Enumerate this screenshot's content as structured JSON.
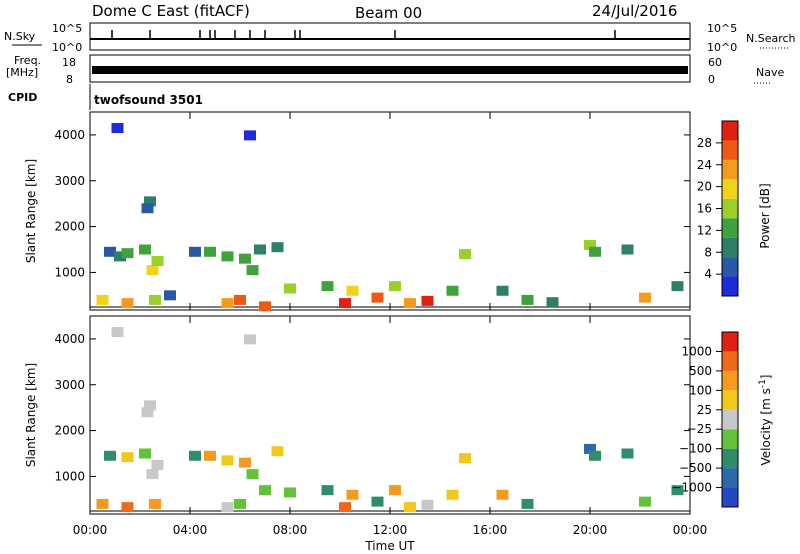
{
  "header": {
    "radar": "Dome C East (fitACF)",
    "beam": "Beam 00",
    "date": "24/Jul/2016"
  },
  "panels": {
    "nsky_label": "N.Sky",
    "nsky_ticks": [
      "10^5",
      "10^0"
    ],
    "nsearch_label": "N.Search",
    "nsearch_ticks": [
      "10^5",
      "10^0"
    ],
    "freq_label_1": "Freq.",
    "freq_label_2": "[MHz]",
    "freq_ticks": [
      "18",
      "8"
    ],
    "nave_label": "Nave",
    "nave_ticks": [
      "60",
      "0"
    ],
    "cpid_label": "CPID",
    "cpid_value": "twofsound 3501"
  },
  "x_axis": {
    "title": "Time UT",
    "ticks": [
      "00:00",
      "04:00",
      "08:00",
      "12:00",
      "16:00",
      "20:00",
      "00:00"
    ]
  },
  "chart_data": [
    {
      "type": "heatmap",
      "title": "",
      "xlabel": "Time UT",
      "ylabel": "Slant Range [km]",
      "xlim": [
        0,
        24
      ],
      "ylim": [
        180,
        4500
      ],
      "y_ticks": [
        "1000",
        "2000",
        "3000",
        "4000"
      ],
      "colorbar": {
        "label": "Power [dB]",
        "range": [
          0,
          32
        ],
        "ticks": [
          "4",
          "8",
          "12",
          "16",
          "20",
          "24",
          "28"
        ],
        "colors": [
          "#1f2bd9",
          "#2858a8",
          "#2e7f69",
          "#3fa23c",
          "#9bcf2a",
          "#f3d21c",
          "#f59a1f",
          "#ef5a12",
          "#e02010"
        ]
      },
      "cells": [
        [
          0.8,
          1450,
          6
        ],
        [
          1.2,
          1350,
          10
        ],
        [
          1.5,
          1420,
          13
        ],
        [
          2.2,
          1500,
          11
        ],
        [
          2.5,
          1050,
          20
        ],
        [
          2.7,
          1250,
          16
        ],
        [
          0.5,
          400,
          18
        ],
        [
          1.5,
          330,
          22
        ],
        [
          2.6,
          400,
          17
        ],
        [
          3.2,
          500,
          7
        ],
        [
          4.2,
          1450,
          6
        ],
        [
          4.8,
          1450,
          12
        ],
        [
          5.5,
          1350,
          14
        ],
        [
          6.2,
          1300,
          11
        ],
        [
          6.8,
          1500,
          8
        ],
        [
          7.5,
          1550,
          10
        ],
        [
          6.5,
          1050,
          12
        ],
        [
          5.5,
          330,
          22
        ],
        [
          6.0,
          400,
          26
        ],
        [
          7.0,
          260,
          26
        ],
        [
          8.0,
          650,
          15
        ],
        [
          9.5,
          700,
          14
        ],
        [
          10.2,
          330,
          30
        ],
        [
          10.5,
          600,
          18
        ],
        [
          11.5,
          450,
          25
        ],
        [
          12.2,
          700,
          16
        ],
        [
          12.8,
          330,
          24
        ],
        [
          13.5,
          380,
          30
        ],
        [
          14.5,
          600,
          14
        ],
        [
          15.0,
          1400,
          15
        ],
        [
          16.5,
          600,
          10
        ],
        [
          17.5,
          400,
          14
        ],
        [
          18.5,
          350,
          8
        ],
        [
          20.0,
          1600,
          17
        ],
        [
          20.2,
          1450,
          13
        ],
        [
          21.5,
          1500,
          9
        ],
        [
          22.2,
          450,
          22
        ],
        [
          23.5,
          700,
          10
        ],
        [
          2.4,
          2550,
          10
        ],
        [
          2.3,
          2400,
          4
        ],
        [
          1.1,
          4150,
          2
        ],
        [
          6.4,
          3990,
          3
        ]
      ]
    },
    {
      "type": "heatmap",
      "title": "",
      "xlabel": "Time UT",
      "ylabel": "Slant Range [km]",
      "xlim": [
        0,
        24
      ],
      "ylim": [
        180,
        4500
      ],
      "y_ticks": [
        "1000",
        "2000",
        "3000",
        "4000"
      ],
      "colorbar": {
        "label": "Velocity [m s^-1]",
        "ticks": [
          "1000",
          "500",
          "100",
          "25",
          "−25",
          "−100",
          "−500",
          "−1000"
        ],
        "colors": [
          "#2447c6",
          "#2b6aa8",
          "#2f8d6c",
          "#62c23a",
          "#c8c8c8",
          "#f3c81c",
          "#f59a1f",
          "#ee6a18",
          "#e02010"
        ]
      },
      "cells": [
        [
          0.8,
          1450,
          2
        ],
        [
          1.5,
          1420,
          5
        ],
        [
          2.2,
          1500,
          3
        ],
        [
          2.5,
          1050,
          4
        ],
        [
          2.7,
          1250,
          4
        ],
        [
          0.5,
          400,
          6
        ],
        [
          1.5,
          330,
          7
        ],
        [
          2.6,
          400,
          6
        ],
        [
          4.2,
          1450,
          2
        ],
        [
          4.8,
          1450,
          6
        ],
        [
          5.5,
          1350,
          5
        ],
        [
          6.2,
          1300,
          6
        ],
        [
          7.5,
          1550,
          5
        ],
        [
          6.5,
          1050,
          3
        ],
        [
          5.5,
          330,
          4
        ],
        [
          6.0,
          400,
          3
        ],
        [
          7.0,
          700,
          3
        ],
        [
          8.0,
          650,
          3
        ],
        [
          9.5,
          700,
          2
        ],
        [
          10.2,
          330,
          7
        ],
        [
          10.5,
          600,
          6
        ],
        [
          11.5,
          450,
          2
        ],
        [
          12.2,
          700,
          6
        ],
        [
          12.8,
          330,
          5
        ],
        [
          13.5,
          380,
          4
        ],
        [
          14.5,
          600,
          5
        ],
        [
          15.0,
          1400,
          5
        ],
        [
          16.5,
          600,
          6
        ],
        [
          17.5,
          400,
          2
        ],
        [
          20.0,
          1600,
          1
        ],
        [
          20.2,
          1450,
          2
        ],
        [
          21.5,
          1500,
          2
        ],
        [
          22.2,
          450,
          3
        ],
        [
          23.5,
          700,
          2
        ],
        [
          2.4,
          2550,
          4
        ],
        [
          2.3,
          2400,
          4
        ],
        [
          1.1,
          4150,
          4
        ],
        [
          6.4,
          3990,
          4
        ]
      ]
    }
  ]
}
